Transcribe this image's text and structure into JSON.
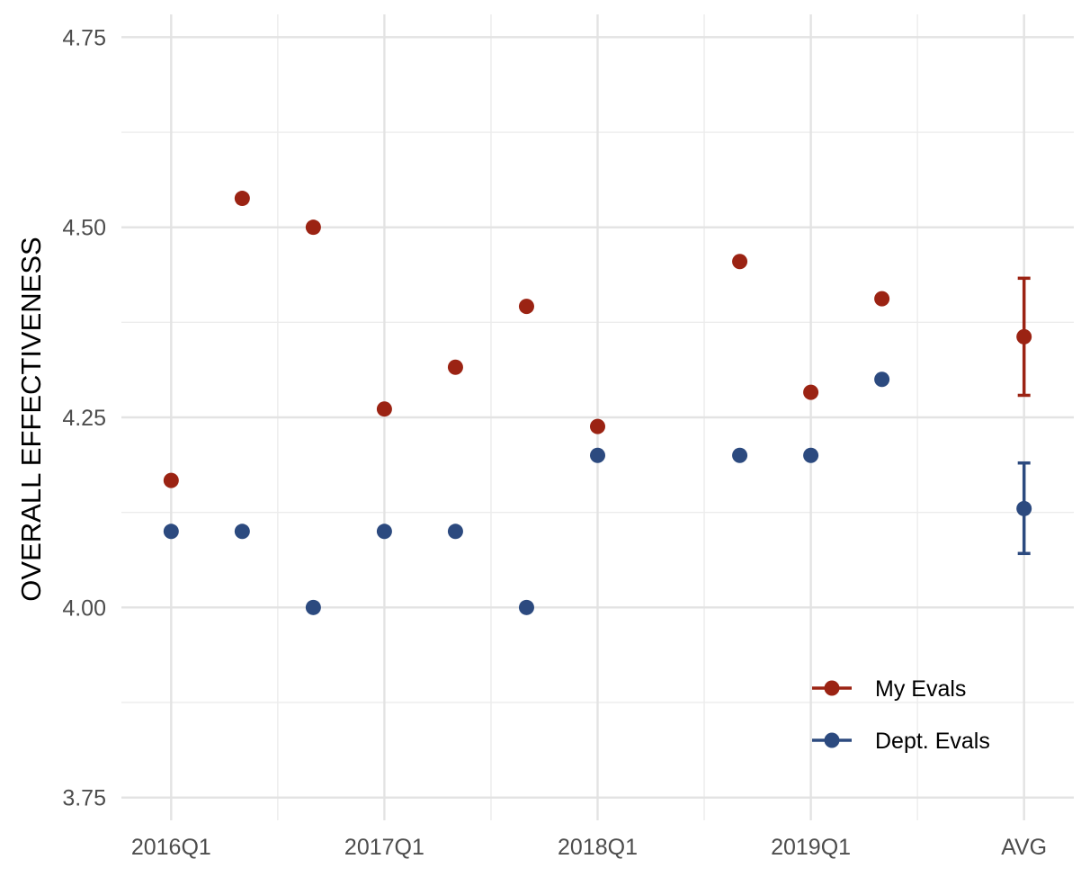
{
  "chart_data": {
    "type": "scatter",
    "title": "",
    "xlabel": "",
    "ylabel": "OVERALL EFFECTIVENESS",
    "ylim": [
      3.72,
      4.78
    ],
    "y_ticks": [
      3.75,
      4.0,
      4.25,
      4.5,
      4.75
    ],
    "y_tick_labels": [
      "3.75",
      "4.00",
      "4.25",
      "4.50",
      "4.75"
    ],
    "x_tick_labels": [
      "2016Q1",
      "2017Q1",
      "2018Q1",
      "2019Q1",
      "AVG"
    ],
    "x_tick_positions": [
      0,
      3,
      6,
      9,
      12
    ],
    "x_range": [
      -0.7,
      12.7
    ],
    "grid": true,
    "legend_position": "bottom-right",
    "series": [
      {
        "name": "My Evals",
        "color": "#9b2313",
        "points": [
          {
            "x": 0,
            "y": 4.167
          },
          {
            "x": 1,
            "y": 4.538
          },
          {
            "x": 2,
            "y": 4.5
          },
          {
            "x": 3,
            "y": 4.261
          },
          {
            "x": 4,
            "y": 4.316
          },
          {
            "x": 5,
            "y": 4.396
          },
          {
            "x": 6,
            "y": 4.238
          },
          {
            "x": 8,
            "y": 4.455
          },
          {
            "x": 9,
            "y": 4.283
          },
          {
            "x": 10,
            "y": 4.406
          }
        ],
        "avg": {
          "x": 12,
          "y": 4.356,
          "ymin": 4.279,
          "ymax": 4.433
        }
      },
      {
        "name": "Dept. Evals",
        "color": "#2c4a7f",
        "points": [
          {
            "x": 0,
            "y": 4.1
          },
          {
            "x": 1,
            "y": 4.1
          },
          {
            "x": 2,
            "y": 4.0
          },
          {
            "x": 3,
            "y": 4.1
          },
          {
            "x": 4,
            "y": 4.1
          },
          {
            "x": 5,
            "y": 4.0
          },
          {
            "x": 6,
            "y": 4.2
          },
          {
            "x": 8,
            "y": 4.2
          },
          {
            "x": 9,
            "y": 4.2
          },
          {
            "x": 10,
            "y": 4.3
          }
        ],
        "avg": {
          "x": 12,
          "y": 4.13,
          "ymin": 4.071,
          "ymax": 4.19
        }
      }
    ]
  }
}
